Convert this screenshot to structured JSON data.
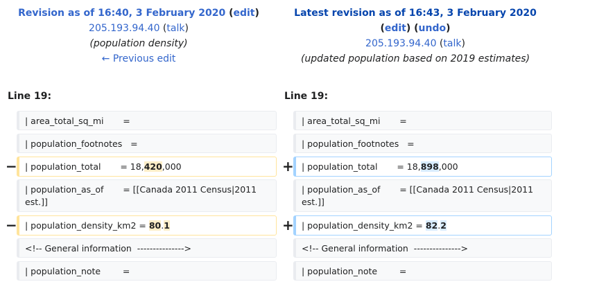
{
  "left_header": {
    "title": "Revision as of 16:40, 3 February 2020",
    "edit": "edit",
    "user": "205.193.94.40",
    "talk": "talk",
    "comment": "(population density)",
    "prev": "← Previous edit"
  },
  "right_header": {
    "title": "Latest revision as of 16:43, 3 February 2020",
    "edit": "edit",
    "undo": "undo",
    "user": "205.193.94.40",
    "talk": "talk",
    "comment": "(updated population based on 2019 estimates)"
  },
  "line_label": "Line 19:",
  "markers": {
    "del": "−",
    "add": "+"
  },
  "rows": [
    {
      "left": "| area_total_sq_mi       =",
      "right": "| area_total_sq_mi       ="
    },
    {
      "left": "| population_footnotes   =",
      "right": "| population_footnotes   ="
    },
    {
      "left_pre": "| population_total       = 18,",
      "left_hl": "420",
      "left_post": ",000",
      "right_pre": "| population_total       = 18,",
      "right_hl": "898",
      "right_post": ",000"
    },
    {
      "left": "| population_as_of       = [[Canada 2011 Census|2011 est.]]",
      "right": "| population_as_of       = [[Canada 2011 Census|2011 est.]]"
    },
    {
      "left_pre": "| population_density_km2 = ",
      "left_hl": "80",
      "left_mid": ".",
      "left_hl2": "1",
      "right_pre": "| population_density_km2 = ",
      "right_hl": "82",
      "right_mid": ".",
      "right_hl2": "2"
    },
    {
      "left": "<!-- General information  --------------->",
      "right": "<!-- General information  --------------->"
    },
    {
      "left": "| population_note        =",
      "right": "| population_note        ="
    }
  ]
}
